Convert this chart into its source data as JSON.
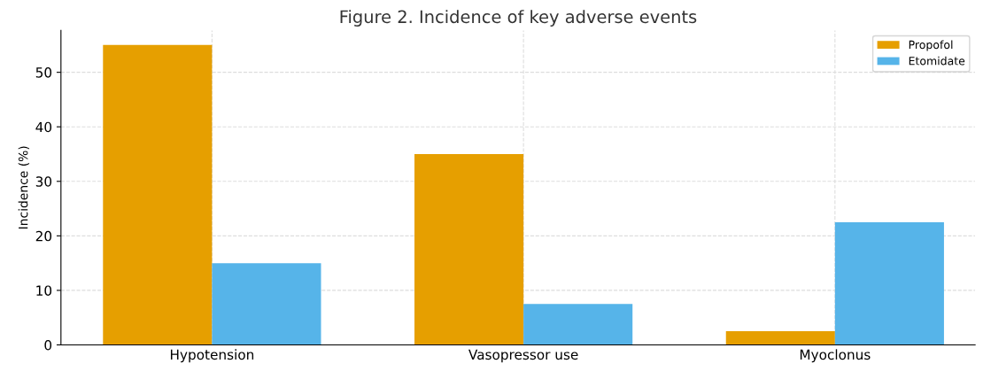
{
  "chart_data": {
    "type": "bar",
    "title": "Figure 2. Incidence of key adverse events",
    "ylabel": "Incidence (%)",
    "categories": [
      "Hypotension",
      "Vasopressor use",
      "Myoclonus"
    ],
    "series": [
      {
        "name": "Propofol",
        "color": "#e69f00",
        "values": [
          55,
          35,
          2.5
        ]
      },
      {
        "name": "Etomidate",
        "color": "#56b4e9",
        "values": [
          15,
          7.5,
          22.5
        ]
      }
    ],
    "ylim": [
      0,
      57.7
    ],
    "yticks": [
      0,
      10,
      20,
      30,
      40,
      50
    ],
    "grid": true,
    "legend": "top right"
  }
}
